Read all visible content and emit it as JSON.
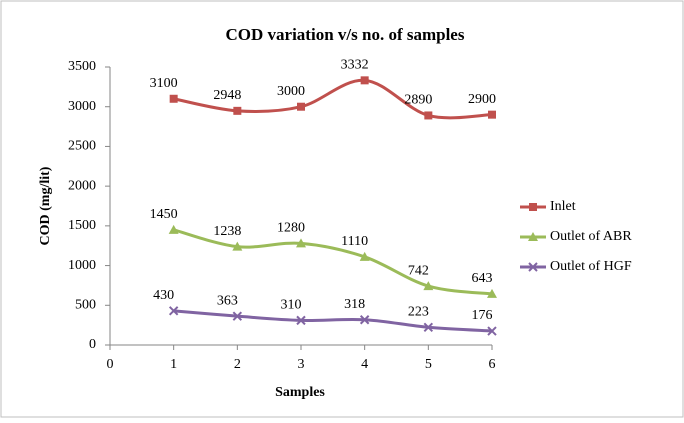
{
  "chart_data": {
    "type": "line",
    "title": "COD variation v/s no. of samples",
    "xlabel": "Samples",
    "ylabel": "COD (mg/lit)",
    "x": [
      1,
      2,
      3,
      4,
      5,
      6
    ],
    "xlim": [
      0,
      6
    ],
    "xticks": [
      0,
      1,
      2,
      3,
      4,
      5,
      6
    ],
    "ylim": [
      0,
      3500
    ],
    "yticks": [
      0,
      500,
      1000,
      1500,
      2000,
      2500,
      3000,
      3500
    ],
    "grid": false,
    "legend": "right",
    "smooth": true,
    "series": [
      {
        "name": "Inlet",
        "color": "#c0504d",
        "marker": "square",
        "values": [
          3100,
          2948,
          3000,
          3332,
          2890,
          2900
        ]
      },
      {
        "name": "Outlet of ABR",
        "color": "#9bbb59",
        "marker": "triangle",
        "values": [
          1450,
          1238,
          1280,
          1110,
          742,
          643
        ]
      },
      {
        "name": "Outlet of HGF",
        "color": "#8064a2",
        "marker": "x",
        "values": [
          430,
          363,
          310,
          318,
          223,
          176
        ]
      }
    ]
  }
}
